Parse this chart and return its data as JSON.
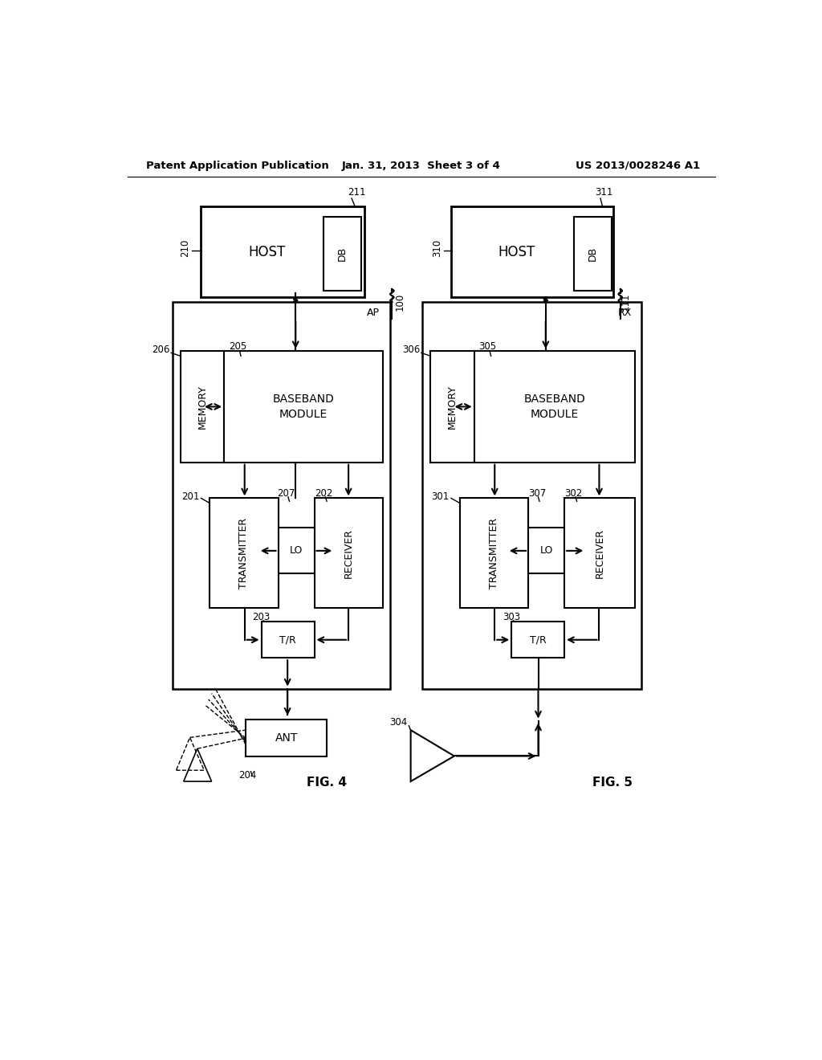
{
  "title_left": "Patent Application Publication",
  "title_center": "Jan. 31, 2013  Sheet 3 of 4",
  "title_right": "US 2013/0028246 A1",
  "bg_color": "#ffffff",
  "fig4_label": "FIG. 4",
  "fig5_label": "FIG. 5"
}
